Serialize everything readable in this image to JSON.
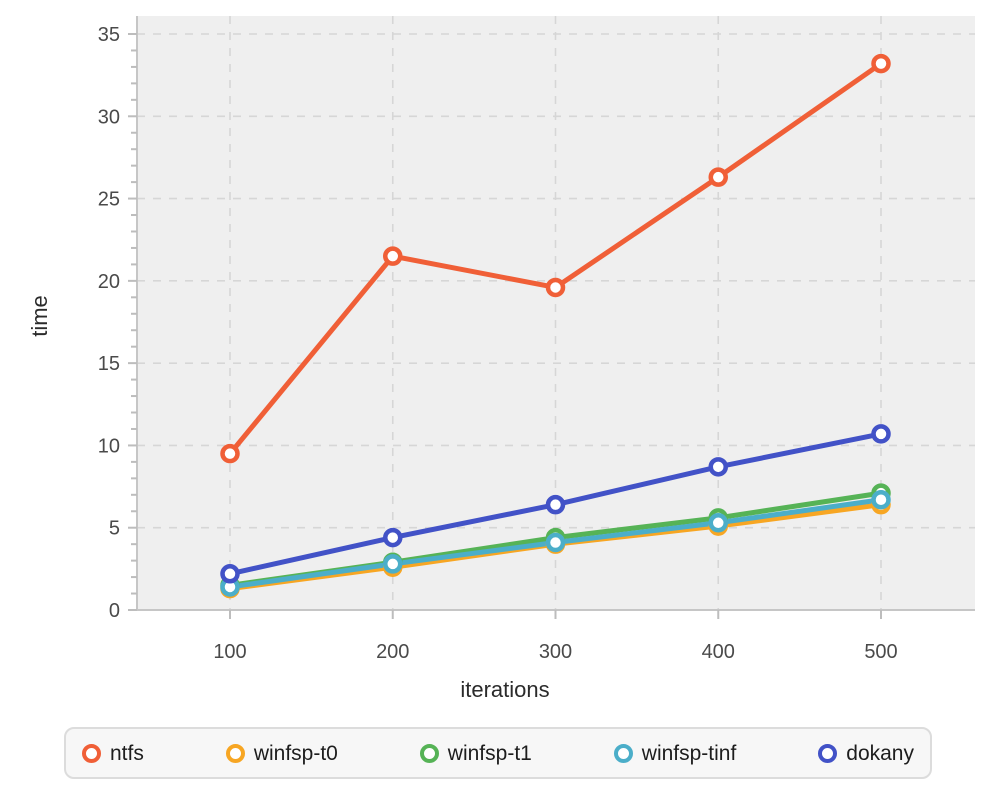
{
  "chart_data": {
    "type": "line",
    "title": "",
    "xlabel": "iterations",
    "ylabel": "time",
    "x": [
      100,
      200,
      300,
      400,
      500
    ],
    "series": [
      {
        "name": "ntfs",
        "color": "#F05F37",
        "values": [
          9.5,
          21.5,
          19.6,
          26.3,
          33.2
        ]
      },
      {
        "name": "winfsp-t0",
        "color": "#F7A623",
        "values": [
          1.3,
          2.6,
          4.0,
          5.1,
          6.4
        ]
      },
      {
        "name": "winfsp-t1",
        "color": "#56B356",
        "values": [
          1.5,
          2.9,
          4.4,
          5.6,
          7.1
        ]
      },
      {
        "name": "winfsp-tinf",
        "color": "#4BAEC9",
        "values": [
          1.4,
          2.8,
          4.1,
          5.3,
          6.7
        ]
      },
      {
        "name": "dokany",
        "color": "#4252C7",
        "values": [
          2.2,
          4.4,
          6.4,
          8.7,
          10.7
        ]
      }
    ],
    "xticks": [
      100,
      200,
      300,
      400,
      500
    ],
    "yticks": [
      0,
      5,
      10,
      15,
      20,
      25,
      30,
      35
    ],
    "ylim": [
      0,
      35
    ],
    "xlim": [
      43,
      557
    ],
    "grid": true,
    "grid_style": "dashed",
    "legend_position": "bottom",
    "marker": "open-circle"
  },
  "theme": {
    "plot_bg": "#EFEFEF",
    "grid_color": "#D6D6D6",
    "axis_color": "#C6C6C6",
    "tick_color": "#BDBDBD",
    "tick_label_color": "#4A4A4A",
    "title_color": "#2B2B2B",
    "legend_bg": "#F7F7F7",
    "legend_border": "#DCDCDC",
    "marker_fill": "#FFFFFF"
  }
}
